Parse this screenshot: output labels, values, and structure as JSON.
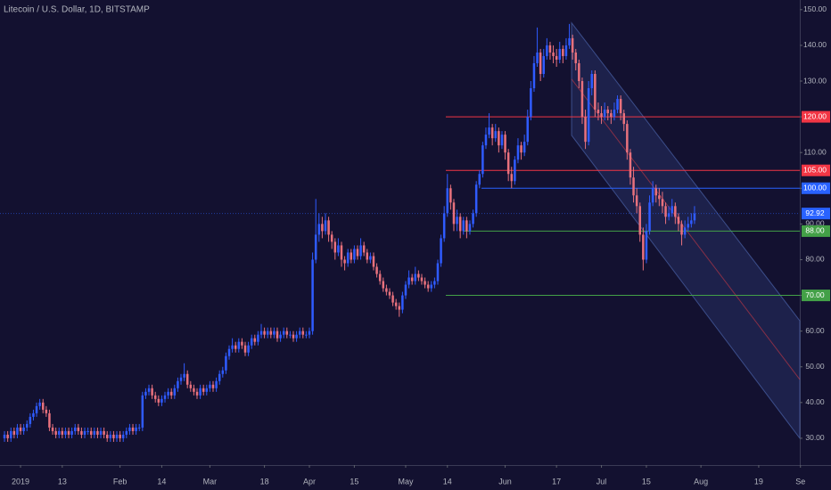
{
  "chart_data": {
    "type": "candlestick",
    "title": "Litecoin / U.S. Dollar, 1D, BITSTAMP",
    "colors": {
      "up": "#2f5bff",
      "down": "#e8717d"
    },
    "xlim": [
      -6.4,
      242.8
    ],
    "ylim": [
      22.5,
      152.7
    ],
    "xticks": [
      {
        "value": 0,
        "label": "2019"
      },
      13,
      {
        "value": 31,
        "label": "Feb"
      },
      {
        "value": 44,
        "label": "14"
      },
      {
        "value": 59,
        "label": "Mar"
      },
      {
        "value": 76,
        "label": "18"
      },
      {
        "value": 90,
        "label": "Apr"
      },
      {
        "value": 104,
        "label": "15"
      },
      {
        "value": 120,
        "label": "May"
      },
      {
        "value": 133,
        "label": "14"
      },
      {
        "value": 151,
        "label": "Jun"
      },
      {
        "value": 167,
        "label": "17"
      },
      {
        "value": 181,
        "label": "Jul"
      },
      {
        "value": 195,
        "label": "15"
      },
      {
        "value": 212,
        "label": "Aug"
      },
      {
        "value": 230,
        "label": "19"
      },
      {
        "value": 243,
        "label": "Se"
      }
    ],
    "yticks": [
      {
        "value": 30,
        "label": "30.00"
      },
      {
        "value": 40,
        "label": "40.00"
      },
      {
        "value": 50,
        "label": "50.00"
      },
      {
        "value": 60,
        "label": "60.00"
      },
      {
        "value": 70,
        "label": "70.00"
      },
      {
        "value": 80,
        "label": "80.00"
      },
      {
        "value": 90,
        "label": "90.00"
      },
      {
        "value": 100,
        "label": "100.00"
      },
      {
        "value": 110,
        "label": "110.00"
      },
      {
        "value": 120,
        "label": "120.00"
      },
      {
        "value": 130,
        "label": "130.00"
      },
      {
        "value": 140,
        "label": "140.00"
      },
      {
        "value": 150,
        "label": "150.00"
      }
    ],
    "last_price": 92.92,
    "levels": [
      {
        "value": 120,
        "label": "120.00",
        "color": "#f23645",
        "x0": 132.5
      },
      {
        "value": 105,
        "label": "105.00",
        "color": "#f23645",
        "x0": 132.5
      },
      {
        "value": 100,
        "label": "100.00",
        "color": "#2962ff",
        "x0": 143.6
      },
      {
        "value": 88,
        "label": "88.00",
        "color": "#43a047",
        "x0": 138
      },
      {
        "value": 70,
        "label": "70.00",
        "color": "#43a047",
        "x0": 132.5
      }
    ],
    "channel": {
      "x": [
        171.7,
        242.8
      ],
      "upper": [
        146.3,
        62.9
      ],
      "lower": [
        114.8,
        30
      ]
    },
    "x": [
      -5,
      -4,
      -3,
      -2,
      -1,
      0,
      1,
      2,
      3,
      4,
      5,
      6,
      7,
      8,
      9,
      10,
      11,
      12,
      13,
      14,
      15,
      16,
      17,
      18,
      19,
      20,
      21,
      22,
      23,
      24,
      25,
      26,
      27,
      28,
      29,
      30,
      31,
      32,
      33,
      34,
      35,
      36,
      37,
      38,
      39,
      40,
      41,
      42,
      43,
      44,
      45,
      46,
      47,
      48,
      49,
      50,
      51,
      52,
      53,
      54,
      55,
      56,
      57,
      58,
      59,
      60,
      61,
      62,
      63,
      64,
      65,
      66,
      67,
      68,
      69,
      70,
      71,
      72,
      73,
      74,
      75,
      76,
      77,
      78,
      79,
      80,
      81,
      82,
      83,
      84,
      85,
      86,
      87,
      88,
      89,
      90,
      91,
      92,
      93,
      94,
      95,
      96,
      97,
      98,
      99,
      100,
      101,
      102,
      103,
      104,
      105,
      106,
      107,
      108,
      109,
      110,
      111,
      112,
      113,
      114,
      115,
      116,
      117,
      118,
      119,
      120,
      121,
      122,
      123,
      124,
      125,
      126,
      127,
      128,
      129,
      130,
      131,
      132,
      133,
      134,
      135,
      136,
      137,
      138,
      139,
      140,
      141,
      142,
      143,
      144,
      145,
      146,
      147,
      148,
      149,
      150,
      151,
      152,
      153,
      154,
      155,
      156,
      157,
      158,
      159,
      160,
      161,
      162,
      163,
      164,
      165,
      166,
      167,
      168,
      169,
      170,
      171,
      172,
      173,
      174,
      175,
      176,
      177,
      178,
      179,
      180,
      181,
      182,
      183,
      184,
      185,
      186,
      187,
      188,
      189,
      190,
      191,
      192,
      193,
      194,
      195,
      196,
      197,
      198,
      199,
      200,
      201,
      202,
      203,
      204,
      205,
      206,
      207,
      208,
      209,
      210
    ],
    "candles": [
      [
        30,
        32,
        29,
        31
      ],
      [
        31,
        32,
        29,
        30
      ],
      [
        30,
        33,
        29,
        32
      ],
      [
        32,
        33,
        30,
        31
      ],
      [
        31,
        34,
        30,
        33
      ],
      [
        33,
        34,
        31,
        32
      ],
      [
        32,
        34,
        31,
        33
      ],
      [
        33,
        35,
        32,
        34
      ],
      [
        34,
        37,
        33,
        36
      ],
      [
        36,
        38,
        35,
        37
      ],
      [
        37,
        40,
        36,
        39
      ],
      [
        39,
        41,
        38,
        40
      ],
      [
        40,
        41,
        37,
        38
      ],
      [
        38,
        39,
        36,
        37
      ],
      [
        37,
        38,
        32,
        33
      ],
      [
        33,
        34,
        31,
        32
      ],
      [
        32,
        33,
        30,
        31
      ],
      [
        31,
        33,
        30,
        32
      ],
      [
        32,
        33,
        30,
        31
      ],
      [
        31,
        33,
        30,
        32
      ],
      [
        32,
        33,
        30,
        31
      ],
      [
        31,
        33,
        30,
        32
      ],
      [
        32,
        34,
        31,
        33
      ],
      [
        33,
        34,
        31,
        32
      ],
      [
        32,
        33,
        30,
        31
      ],
      [
        31,
        33,
        30,
        32
      ],
      [
        32,
        33,
        31,
        32
      ],
      [
        32,
        33,
        30,
        31
      ],
      [
        31,
        33,
        30,
        32
      ],
      [
        32,
        33,
        30,
        31
      ],
      [
        31,
        33,
        30,
        32
      ],
      [
        32,
        33,
        30,
        31
      ],
      [
        31,
        32,
        29,
        30
      ],
      [
        30,
        32,
        29,
        31
      ],
      [
        31,
        32,
        29,
        30
      ],
      [
        30,
        32,
        29,
        31
      ],
      [
        31,
        32,
        29,
        30
      ],
      [
        30,
        32,
        29,
        31
      ],
      [
        31,
        33,
        30,
        32
      ],
      [
        32,
        34,
        31,
        33
      ],
      [
        33,
        34,
        31,
        32
      ],
      [
        32,
        34,
        31,
        33
      ],
      [
        33,
        34,
        32,
        33
      ],
      [
        33,
        43,
        32,
        42
      ],
      [
        42,
        44,
        41,
        43
      ],
      [
        43,
        45,
        42,
        44
      ],
      [
        44,
        45,
        41,
        42
      ],
      [
        42,
        43,
        40,
        41
      ],
      [
        41,
        42,
        39,
        40
      ],
      [
        40,
        42,
        39,
        41
      ],
      [
        41,
        43,
        40,
        42
      ],
      [
        42,
        44,
        41,
        43
      ],
      [
        43,
        44,
        41,
        42
      ],
      [
        42,
        45,
        41,
        44
      ],
      [
        44,
        47,
        43,
        46
      ],
      [
        46,
        48,
        45,
        47
      ],
      [
        47,
        51,
        46,
        48
      ],
      [
        48,
        49,
        44,
        45
      ],
      [
        45,
        46,
        43,
        44
      ],
      [
        44,
        45,
        42,
        43
      ],
      [
        43,
        44,
        41,
        42
      ],
      [
        42,
        45,
        41,
        44
      ],
      [
        44,
        45,
        42,
        43
      ],
      [
        43,
        45,
        42,
        44
      ],
      [
        44,
        46,
        43,
        45
      ],
      [
        45,
        46,
        43,
        44
      ],
      [
        44,
        47,
        43,
        46
      ],
      [
        46,
        49,
        45,
        48
      ],
      [
        48,
        50,
        47,
        49
      ],
      [
        49,
        54,
        48,
        53
      ],
      [
        53,
        56,
        52,
        55
      ],
      [
        55,
        58,
        54,
        56
      ],
      [
        56,
        57,
        54,
        55
      ],
      [
        55,
        58,
        54,
        57
      ],
      [
        57,
        58,
        55,
        56
      ],
      [
        56,
        57,
        53,
        54
      ],
      [
        54,
        57,
        53,
        56
      ],
      [
        56,
        59,
        55,
        58
      ],
      [
        58,
        59,
        56,
        57
      ],
      [
        57,
        60,
        56,
        59
      ],
      [
        59,
        62,
        58,
        60
      ],
      [
        60,
        61,
        58,
        59
      ],
      [
        59,
        61,
        58,
        60
      ],
      [
        60,
        61,
        58,
        59
      ],
      [
        59,
        61,
        58,
        60
      ],
      [
        60,
        61,
        57,
        58
      ],
      [
        58,
        60,
        57,
        59
      ],
      [
        59,
        61,
        58,
        60
      ],
      [
        60,
        61,
        58,
        59
      ],
      [
        59,
        60,
        58,
        59
      ],
      [
        59,
        60,
        57,
        58
      ],
      [
        58,
        60,
        57,
        59
      ],
      [
        59,
        61,
        58,
        60
      ],
      [
        60,
        61,
        58,
        59
      ],
      [
        59,
        60,
        58,
        59
      ],
      [
        59,
        61,
        58,
        60
      ],
      [
        60,
        82,
        59,
        80
      ],
      [
        80,
        97,
        79,
        87
      ],
      [
        87,
        93,
        85,
        90
      ],
      [
        90,
        92,
        86,
        88
      ],
      [
        88,
        93,
        87,
        91
      ],
      [
        91,
        92,
        85,
        87
      ],
      [
        87,
        88,
        83,
        85
      ],
      [
        85,
        86,
        80,
        82
      ],
      [
        82,
        86,
        81,
        84
      ],
      [
        84,
        85,
        78,
        80
      ],
      [
        80,
        81,
        77,
        79
      ],
      [
        79,
        83,
        78,
        82
      ],
      [
        82,
        83,
        79,
        80
      ],
      [
        80,
        84,
        79,
        83
      ],
      [
        83,
        84,
        80,
        81
      ],
      [
        81,
        86,
        80,
        84
      ],
      [
        84,
        85,
        81,
        82
      ],
      [
        82,
        83,
        79,
        80
      ],
      [
        80,
        82,
        79,
        81
      ],
      [
        81,
        82,
        77,
        78
      ],
      [
        78,
        79,
        75,
        76
      ],
      [
        76,
        77,
        73,
        74
      ],
      [
        74,
        75,
        71,
        72
      ],
      [
        72,
        73,
        70,
        71
      ],
      [
        71,
        72,
        69,
        70
      ],
      [
        70,
        71,
        67,
        68
      ],
      [
        68,
        69,
        66,
        67
      ],
      [
        67,
        68,
        64,
        66
      ],
      [
        66,
        71,
        65,
        70
      ],
      [
        70,
        74,
        69,
        73
      ],
      [
        73,
        77,
        72,
        75
      ],
      [
        75,
        76,
        73,
        74
      ],
      [
        74,
        78,
        73,
        76
      ],
      [
        76,
        77,
        74,
        75
      ],
      [
        75,
        76,
        73,
        74
      ],
      [
        74,
        75,
        72,
        73
      ],
      [
        73,
        74,
        71,
        72
      ],
      [
        72,
        74,
        71,
        73
      ],
      [
        73,
        75,
        72,
        74
      ],
      [
        74,
        80,
        73,
        79
      ],
      [
        79,
        87,
        78,
        86
      ],
      [
        86,
        95,
        85,
        93
      ],
      [
        93,
        104,
        92,
        100
      ],
      [
        100,
        101,
        94,
        96
      ],
      [
        96,
        97,
        88,
        90
      ],
      [
        90,
        94,
        88,
        92
      ],
      [
        92,
        93,
        86,
        88
      ],
      [
        88,
        92,
        87,
        91
      ],
      [
        91,
        92,
        86,
        88
      ],
      [
        88,
        91,
        87,
        90
      ],
      [
        90,
        94,
        89,
        93
      ],
      [
        93,
        102,
        92,
        101
      ],
      [
        101,
        105,
        100,
        104
      ],
      [
        104,
        113,
        103,
        112
      ],
      [
        112,
        117,
        111,
        115
      ],
      [
        115,
        121,
        114,
        117
      ],
      [
        117,
        118,
        112,
        114
      ],
      [
        114,
        118,
        113,
        116
      ],
      [
        116,
        117,
        110,
        112
      ],
      [
        112,
        116,
        111,
        115
      ],
      [
        115,
        116,
        108,
        110
      ],
      [
        110,
        111,
        102,
        104
      ],
      [
        104,
        106,
        100,
        102
      ],
      [
        102,
        109,
        101,
        108
      ],
      [
        108,
        114,
        107,
        112
      ],
      [
        112,
        113,
        108,
        110
      ],
      [
        110,
        115,
        109,
        113
      ],
      [
        113,
        122,
        112,
        120
      ],
      [
        120,
        130,
        119,
        128
      ],
      [
        128,
        137,
        127,
        135
      ],
      [
        135,
        145,
        134,
        138
      ],
      [
        138,
        139,
        130,
        132
      ],
      [
        132,
        139,
        131,
        137
      ],
      [
        137,
        142,
        136,
        140
      ],
      [
        140,
        141,
        136,
        138
      ],
      [
        138,
        140,
        135,
        137
      ],
      [
        137,
        139,
        134,
        136
      ],
      [
        136,
        141,
        135,
        139
      ],
      [
        139,
        140,
        135,
        137
      ],
      [
        137,
        142,
        136,
        140
      ],
      [
        140,
        146,
        139,
        142
      ],
      [
        142,
        143,
        136,
        138
      ],
      [
        138,
        139,
        133,
        135
      ],
      [
        135,
        136,
        128,
        130
      ],
      [
        130,
        131,
        118,
        120
      ],
      [
        120,
        122,
        111,
        113
      ],
      [
        113,
        130,
        112,
        128
      ],
      [
        128,
        133,
        126,
        132
      ],
      [
        132,
        133,
        120,
        122
      ],
      [
        122,
        124,
        119,
        121
      ],
      [
        121,
        123,
        118,
        120
      ],
      [
        120,
        124,
        119,
        122
      ],
      [
        122,
        123,
        119,
        121
      ],
      [
        121,
        122,
        118,
        120
      ],
      [
        120,
        124,
        119,
        122
      ],
      [
        122,
        126,
        121,
        125
      ],
      [
        125,
        126,
        119,
        121
      ],
      [
        121,
        122,
        116,
        118
      ],
      [
        118,
        119,
        108,
        110
      ],
      [
        110,
        111,
        101,
        103
      ],
      [
        103,
        106,
        96,
        98
      ],
      [
        98,
        100,
        93,
        95
      ],
      [
        95,
        96,
        85,
        87
      ],
      [
        87,
        89,
        77,
        80
      ],
      [
        80,
        90,
        79,
        88
      ],
      [
        88,
        98,
        87,
        96
      ],
      [
        96,
        102,
        95,
        100
      ],
      [
        100,
        101,
        96,
        98
      ],
      [
        98,
        100,
        95,
        97
      ],
      [
        97,
        99,
        93,
        95
      ],
      [
        95,
        96,
        90,
        92
      ],
      [
        92,
        95,
        91,
        93
      ],
      [
        93,
        97,
        92,
        95
      ],
      [
        95,
        96,
        90,
        92
      ],
      [
        92,
        93,
        88,
        90
      ],
      [
        90,
        91,
        84,
        87
      ],
      [
        87,
        91,
        86,
        89
      ],
      [
        89,
        92,
        88,
        90
      ],
      [
        90,
        93,
        89,
        91
      ],
      [
        91,
        95,
        90,
        92.92
      ]
    ]
  }
}
